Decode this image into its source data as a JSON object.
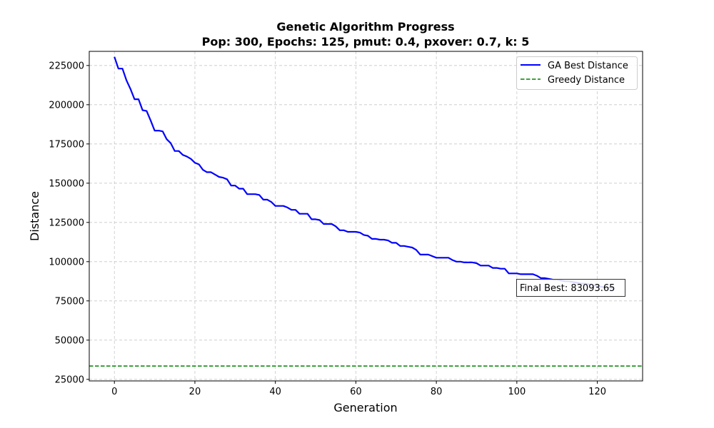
{
  "chart_data": {
    "type": "line",
    "title": "Genetic Algorithm Progress",
    "subtitle": "Pop: 300, Epochs: 125, pmut: 0.4, pxover: 0.7, k: 5",
    "xlabel": "Generation",
    "ylabel": "Distance",
    "xlim": [
      -6.25,
      131.25
    ],
    "ylim": [
      24000,
      234000
    ],
    "x_ticks": [
      0,
      20,
      40,
      60,
      80,
      100,
      120
    ],
    "x_tick_labels": [
      "0",
      "20",
      "40",
      "60",
      "80",
      "100",
      "120"
    ],
    "y_ticks": [
      25000,
      50000,
      75000,
      100000,
      125000,
      150000,
      175000,
      200000,
      225000
    ],
    "y_tick_labels": [
      "25000",
      "50000",
      "75000",
      "100000",
      "125000",
      "150000",
      "175000",
      "200000",
      "225000"
    ],
    "grid": true,
    "legend_position": "top-right",
    "series": [
      {
        "name": "GA Best Distance",
        "color": "#0000ff",
        "line_style": "solid",
        "x": [
          0,
          1,
          2,
          3,
          4,
          5,
          6,
          7,
          8,
          9,
          10,
          11,
          12,
          13,
          14,
          15,
          16,
          17,
          18,
          19,
          20,
          21,
          22,
          23,
          24,
          25,
          26,
          27,
          28,
          29,
          30,
          31,
          32,
          33,
          34,
          35,
          36,
          37,
          38,
          39,
          40,
          41,
          42,
          43,
          44,
          45,
          46,
          47,
          48,
          49,
          50,
          51,
          52,
          53,
          54,
          55,
          56,
          57,
          58,
          59,
          60,
          61,
          62,
          63,
          64,
          65,
          66,
          67,
          68,
          69,
          70,
          71,
          72,
          73,
          74,
          75,
          76,
          77,
          78,
          79,
          80,
          81,
          82,
          83,
          84,
          85,
          86,
          87,
          88,
          89,
          90,
          91,
          92,
          93,
          94,
          95,
          96,
          97,
          98,
          99,
          100,
          101,
          102,
          103,
          104,
          105,
          106,
          107,
          108,
          109,
          110,
          111,
          112,
          113,
          114,
          115,
          116,
          117,
          118,
          119,
          120,
          121,
          122,
          123,
          124
        ],
        "values": [
          230500,
          223000,
          223000,
          215500,
          210000,
          203500,
          203500,
          196500,
          196000,
          190000,
          183500,
          183500,
          183000,
          178000,
          175500,
          170500,
          170500,
          168000,
          167000,
          165500,
          163000,
          162000,
          158500,
          157000,
          157000,
          155500,
          154000,
          153500,
          152500,
          148500,
          148500,
          146500,
          146500,
          143000,
          143000,
          143000,
          142500,
          139500,
          139500,
          138000,
          135500,
          135500,
          135500,
          134500,
          133000,
          133000,
          130500,
          130500,
          130500,
          127000,
          127000,
          126500,
          124000,
          124000,
          124000,
          122500,
          120000,
          120000,
          119000,
          119000,
          119000,
          118500,
          117000,
          116500,
          114500,
          114500,
          114000,
          114000,
          113500,
          112000,
          112000,
          110000,
          110000,
          109500,
          109000,
          107500,
          104500,
          104500,
          104500,
          103500,
          102500,
          102500,
          102500,
          102500,
          101000,
          100000,
          100000,
          99500,
          99500,
          99500,
          99000,
          97500,
          97500,
          97500,
          96000,
          96000,
          95500,
          95500,
          92500,
          92500,
          92500,
          92000,
          92000,
          92000,
          92000,
          91000,
          89500,
          89500,
          89000,
          88500,
          88500,
          88000,
          87500,
          87500,
          87000,
          86500,
          86000,
          86000,
          85500,
          85000,
          84500,
          84000,
          83500,
          83500,
          83093.65
        ]
      },
      {
        "name": "Greedy Distance",
        "color": "#008000",
        "line_style": "dashed",
        "constant_y": 33500
      }
    ],
    "annotation": {
      "text": "Final Best: 83093.65"
    }
  }
}
